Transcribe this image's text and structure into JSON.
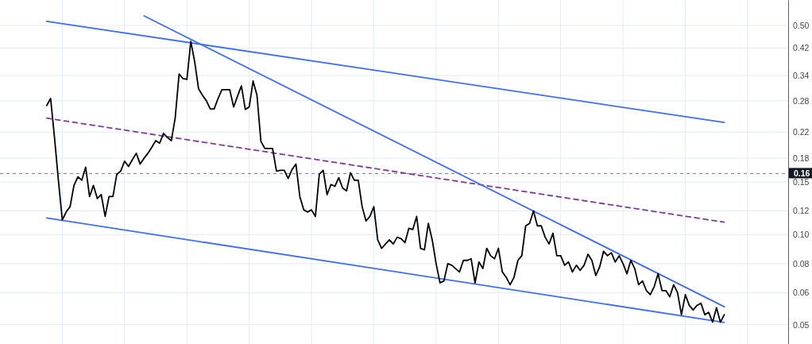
{
  "chart_data": {
    "type": "line",
    "log": true,
    "grid": true,
    "tick_labels": "y",
    "categories": [
      null,
      null,
      null,
      null,
      null,
      null,
      null,
      null,
      null,
      null,
      null,
      null,
      null,
      null,
      null,
      null,
      null,
      null,
      null,
      null,
      null,
      null,
      null,
      null,
      null,
      null,
      null,
      null,
      null,
      null,
      null,
      null,
      null,
      null,
      null,
      null,
      null,
      null,
      null,
      null,
      null,
      null,
      null,
      null,
      null,
      null,
      null,
      null,
      null,
      null,
      null,
      null,
      null,
      null,
      null,
      null,
      null,
      null,
      null,
      null,
      null,
      null,
      null,
      null,
      null,
      null,
      null,
      null,
      null,
      null,
      null,
      null,
      null,
      null,
      null,
      null,
      null,
      null,
      null,
      null,
      null,
      null,
      null,
      null,
      null,
      null,
      null,
      null,
      null,
      null,
      null,
      null,
      null,
      null,
      null,
      null,
      null,
      null,
      null,
      null,
      null,
      null,
      null,
      null,
      null,
      null,
      null,
      null,
      null,
      null,
      null,
      null,
      null,
      null,
      null,
      null,
      null,
      null,
      null,
      null,
      null,
      null,
      null,
      null,
      null,
      null,
      null,
      null,
      null,
      null,
      null,
      null,
      null,
      null,
      null,
      null,
      null,
      null,
      null,
      null,
      null,
      null,
      null,
      null,
      null,
      null,
      null,
      null,
      null,
      null,
      null,
      null,
      null,
      null,
      null,
      null,
      null,
      null,
      null,
      null,
      null,
      null,
      null,
      null,
      null,
      null,
      null,
      null,
      null,
      null,
      null,
      null,
      null,
      null,
      null
    ],
    "ylim": [
      0.0431,
      0.608
    ],
    "yticks": [
      {
        "value": 0.5,
        "label": "0.50"
      },
      0.42,
      0.34,
      0.28,
      0.22,
      0.18,
      0.15,
      0.12,
      {
        "value": 0.1,
        "label": "0.10"
      },
      0.08,
      {
        "value": 0.064,
        "label": "0.06"
      },
      0.05
    ],
    "ref_lines": [
      {
        "axis": "y",
        "value": 0.16,
        "label": "0.16",
        "color": "#787b86",
        "line_style": "dashed"
      }
    ],
    "series": [
      {
        "color": "#000000",
        "values": [
          0.27,
          0.285,
          0.211,
          0.152,
          0.112,
          0.119,
          0.124,
          0.146,
          0.156,
          0.152,
          0.168,
          0.134,
          0.146,
          0.132,
          0.136,
          0.115,
          0.134,
          0.134,
          0.159,
          0.163,
          0.176,
          0.169,
          0.178,
          0.187,
          0.172,
          0.18,
          0.187,
          0.196,
          0.206,
          0.202,
          0.218,
          0.211,
          0.206,
          0.246,
          0.344,
          0.332,
          0.33,
          0.442,
          0.378,
          0.307,
          0.292,
          0.28,
          0.263,
          0.263,
          0.285,
          0.305,
          0.305,
          0.305,
          0.267,
          0.29,
          0.314,
          0.262,
          0.267,
          0.326,
          0.292,
          0.205,
          0.194,
          0.194,
          0.194,
          0.163,
          0.164,
          0.164,
          0.154,
          0.165,
          0.172,
          0.134,
          0.121,
          0.119,
          0.121,
          0.115,
          0.159,
          0.164,
          0.136,
          0.147,
          0.145,
          0.155,
          0.143,
          0.14,
          0.161,
          0.152,
          0.152,
          0.124,
          0.111,
          0.115,
          0.124,
          0.096,
          0.09,
          0.093,
          0.096,
          0.093,
          0.098,
          0.097,
          0.094,
          0.105,
          0.104,
          0.115,
          0.09,
          0.089,
          0.109,
          0.096,
          0.08,
          0.069,
          0.07,
          0.08,
          0.079,
          0.077,
          0.075,
          0.082,
          0.082,
          0.083,
          0.069,
          0.081,
          0.077,
          0.09,
          0.085,
          0.083,
          0.09,
          0.075,
          0.072,
          0.068,
          0.072,
          0.082,
          0.085,
          0.107,
          0.109,
          0.12,
          0.107,
          0.107,
          0.098,
          0.093,
          0.101,
          0.085,
          0.085,
          0.079,
          0.081,
          0.075,
          0.079,
          0.076,
          0.079,
          0.086,
          0.082,
          0.073,
          0.078,
          0.088,
          0.085,
          0.087,
          0.081,
          0.085,
          0.08,
          0.074,
          0.082,
          0.077,
          0.068,
          0.07,
          0.065,
          0.063,
          0.067,
          0.074,
          0.065,
          0.065,
          0.062,
          0.068,
          0.064,
          0.054,
          0.063,
          0.058,
          0.056,
          0.058,
          0.059,
          0.054,
          0.055,
          0.051,
          0.057,
          0.051,
          0.054
        ]
      },
      {
        "color": "#3d6ef5",
        "values": [
          0.516,
          null,
          null,
          null,
          null,
          null,
          null,
          null,
          null,
          null,
          null,
          null,
          null,
          null,
          null,
          null,
          null,
          null,
          null,
          null,
          null,
          null,
          null,
          null,
          null,
          null,
          null,
          null,
          null,
          null,
          null,
          null,
          null,
          null,
          null,
          null,
          null,
          null,
          null,
          null,
          null,
          null,
          null,
          null,
          null,
          null,
          null,
          null,
          null,
          null,
          null,
          null,
          null,
          null,
          null,
          null,
          null,
          null,
          null,
          null,
          null,
          null,
          null,
          null,
          null,
          null,
          null,
          null,
          null,
          null,
          null,
          null,
          null,
          null,
          null,
          null,
          null,
          null,
          null,
          null,
          null,
          null,
          null,
          null,
          null,
          null,
          null,
          null,
          null,
          null,
          null,
          null,
          null,
          null,
          null,
          null,
          null,
          null,
          null,
          null,
          null,
          null,
          null,
          null,
          null,
          null,
          null,
          null,
          null,
          null,
          null,
          null,
          null,
          null,
          null,
          null,
          null,
          null,
          null,
          null,
          null,
          null,
          null,
          null,
          null,
          null,
          null,
          null,
          null,
          null,
          null,
          null,
          null,
          null,
          null,
          null,
          null,
          null,
          null,
          null,
          null,
          null,
          null,
          null,
          null,
          null,
          null,
          null,
          null,
          null,
          null,
          null,
          null,
          null,
          null,
          null,
          null,
          null,
          null,
          null,
          null,
          null,
          null,
          null,
          null,
          null,
          null,
          null,
          null,
          null,
          null,
          null,
          null,
          null,
          0.237
        ]
      },
      {
        "color": "#3d6ef5",
        "values": [
          0.1136,
          null,
          null,
          null,
          null,
          null,
          null,
          null,
          null,
          null,
          null,
          null,
          null,
          null,
          null,
          null,
          null,
          null,
          null,
          null,
          null,
          null,
          null,
          null,
          null,
          null,
          null,
          null,
          null,
          null,
          null,
          null,
          null,
          null,
          null,
          null,
          null,
          null,
          null,
          null,
          null,
          null,
          null,
          null,
          null,
          null,
          null,
          null,
          null,
          null,
          null,
          null,
          null,
          null,
          null,
          null,
          null,
          null,
          null,
          null,
          null,
          null,
          null,
          null,
          null,
          null,
          null,
          null,
          null,
          null,
          null,
          null,
          null,
          null,
          null,
          null,
          null,
          null,
          null,
          null,
          null,
          null,
          null,
          null,
          null,
          null,
          null,
          null,
          null,
          null,
          null,
          null,
          null,
          null,
          null,
          null,
          null,
          null,
          null,
          null,
          null,
          null,
          null,
          null,
          null,
          null,
          null,
          null,
          null,
          null,
          null,
          null,
          null,
          null,
          null,
          null,
          null,
          null,
          null,
          null,
          null,
          null,
          null,
          null,
          null,
          null,
          null,
          null,
          null,
          null,
          null,
          null,
          null,
          null,
          null,
          null,
          null,
          null,
          null,
          null,
          null,
          null,
          null,
          null,
          null,
          null,
          null,
          null,
          null,
          null,
          null,
          null,
          null,
          null,
          null,
          null,
          null,
          null,
          null,
          null,
          null,
          null,
          null,
          null,
          null,
          null,
          null,
          null,
          null,
          null,
          null,
          null,
          null,
          null,
          0.0509
        ]
      },
      {
        "color": "#7e3a9e",
        "line_style": "dashed",
        "values": [
          0.245,
          null,
          null,
          null,
          null,
          null,
          null,
          null,
          null,
          null,
          null,
          null,
          null,
          null,
          null,
          null,
          null,
          null,
          null,
          null,
          null,
          null,
          null,
          null,
          null,
          null,
          null,
          null,
          null,
          null,
          null,
          null,
          null,
          null,
          null,
          null,
          null,
          null,
          null,
          null,
          null,
          null,
          null,
          null,
          null,
          null,
          null,
          null,
          null,
          null,
          null,
          null,
          null,
          null,
          null,
          null,
          null,
          null,
          null,
          null,
          null,
          null,
          null,
          null,
          null,
          null,
          null,
          null,
          null,
          null,
          null,
          null,
          null,
          null,
          null,
          null,
          null,
          null,
          null,
          null,
          null,
          null,
          null,
          null,
          null,
          null,
          null,
          null,
          null,
          null,
          null,
          null,
          null,
          null,
          null,
          null,
          null,
          null,
          null,
          null,
          null,
          null,
          null,
          null,
          null,
          null,
          null,
          null,
          null,
          null,
          null,
          null,
          null,
          null,
          null,
          null,
          null,
          null,
          null,
          null,
          null,
          null,
          null,
          null,
          null,
          null,
          null,
          null,
          null,
          null,
          null,
          null,
          null,
          null,
          null,
          null,
          null,
          null,
          null,
          null,
          null,
          null,
          null,
          null,
          null,
          null,
          null,
          null,
          null,
          null,
          null,
          null,
          null,
          null,
          null,
          null,
          null,
          null,
          null,
          null,
          null,
          null,
          null,
          null,
          null,
          null,
          null,
          null,
          null,
          null,
          null,
          null,
          null,
          null,
          0.11
        ]
      },
      {
        "color": "#3d6ef5",
        "values": [
          null,
          null,
          null,
          null,
          null,
          null,
          null,
          null,
          null,
          null,
          null,
          null,
          null,
          null,
          null,
          null,
          null,
          null,
          null,
          null,
          null,
          null,
          null,
          null,
          null,
          0.538,
          null,
          null,
          null,
          null,
          null,
          null,
          null,
          null,
          null,
          null,
          null,
          null,
          null,
          null,
          null,
          null,
          null,
          null,
          null,
          null,
          null,
          null,
          null,
          null,
          null,
          null,
          null,
          null,
          null,
          null,
          null,
          null,
          null,
          null,
          null,
          null,
          null,
          null,
          null,
          null,
          null,
          null,
          null,
          null,
          null,
          null,
          null,
          null,
          null,
          null,
          null,
          null,
          null,
          null,
          null,
          null,
          null,
          null,
          null,
          null,
          null,
          null,
          null,
          null,
          null,
          null,
          null,
          null,
          null,
          null,
          null,
          null,
          null,
          null,
          null,
          null,
          null,
          null,
          null,
          null,
          null,
          null,
          null,
          null,
          null,
          null,
          null,
          null,
          null,
          null,
          null,
          null,
          null,
          null,
          null,
          null,
          null,
          null,
          null,
          null,
          null,
          null,
          null,
          null,
          null,
          null,
          null,
          null,
          null,
          null,
          null,
          null,
          null,
          null,
          null,
          null,
          null,
          null,
          null,
          null,
          null,
          null,
          null,
          null,
          null,
          null,
          null,
          null,
          null,
          null,
          null,
          null,
          null,
          null,
          null,
          null,
          null,
          null,
          null,
          null,
          null,
          null,
          null,
          null,
          null,
          null,
          null,
          null,
          0.0574
        ]
      }
    ]
  }
}
